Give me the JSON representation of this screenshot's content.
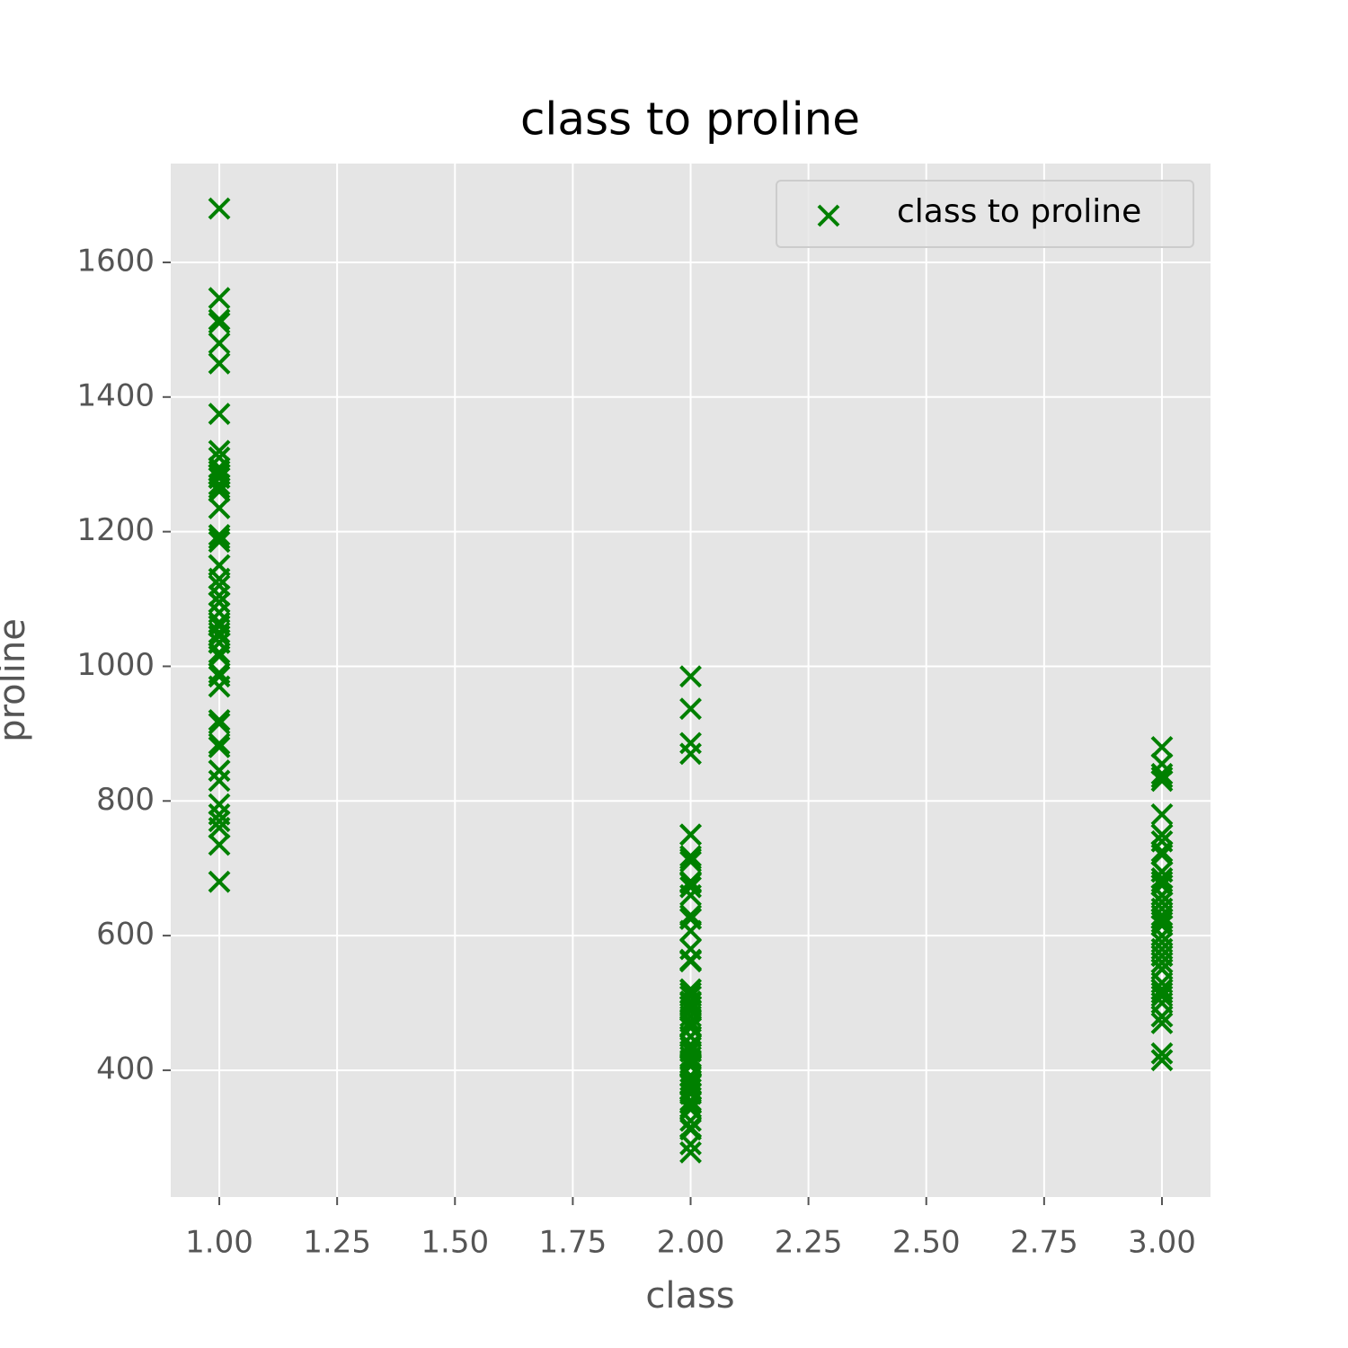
{
  "chart_data": {
    "type": "scatter",
    "title": "class to proline",
    "xlabel": "class",
    "ylabel": "proline",
    "xlim": [
      0.897,
      3.103
    ],
    "ylim": [
      211.7,
      1746.8
    ],
    "xticks": [
      {
        "value": 1,
        "label": "1.00"
      },
      {
        "value": 1.25,
        "label": "1.25"
      },
      {
        "value": 1.5,
        "label": "1.50"
      },
      {
        "value": 1.75,
        "label": "1.75"
      },
      {
        "value": 2,
        "label": "2.00"
      },
      {
        "value": 2.25,
        "label": "2.25"
      },
      {
        "value": 2.5,
        "label": "2.50"
      },
      {
        "value": 2.75,
        "label": "2.75"
      },
      {
        "value": 3,
        "label": "3.00"
      }
    ],
    "yticks": [
      400,
      600,
      800,
      1000,
      1200,
      1400,
      1600
    ],
    "grid": true,
    "legend": "upper right",
    "series": [
      {
        "name": "class to proline",
        "color": "#008000",
        "marker": "x",
        "x": [
          1,
          1,
          1,
          1,
          1,
          1,
          1,
          1,
          1,
          1,
          1,
          1,
          1,
          1,
          1,
          1,
          1,
          1,
          1,
          1,
          1,
          1,
          1,
          1,
          1,
          1,
          1,
          1,
          1,
          1,
          1,
          1,
          1,
          1,
          1,
          1,
          1,
          1,
          1,
          1,
          1,
          1,
          1,
          1,
          1,
          1,
          1,
          1,
          1,
          1,
          1,
          1,
          1,
          1,
          1,
          1,
          1,
          1,
          1,
          2,
          2,
          2,
          2,
          2,
          2,
          2,
          2,
          2,
          2,
          2,
          2,
          2,
          2,
          2,
          2,
          2,
          2,
          2,
          2,
          2,
          2,
          2,
          2,
          2,
          2,
          2,
          2,
          2,
          2,
          2,
          2,
          2,
          2,
          2,
          2,
          2,
          2,
          2,
          2,
          2,
          2,
          2,
          2,
          2,
          2,
          2,
          2,
          2,
          2,
          2,
          2,
          2,
          2,
          2,
          2,
          2,
          2,
          2,
          2,
          2,
          2,
          2,
          2,
          2,
          2,
          2,
          2,
          2,
          2,
          2,
          3,
          3,
          3,
          3,
          3,
          3,
          3,
          3,
          3,
          3,
          3,
          3,
          3,
          3,
          3,
          3,
          3,
          3,
          3,
          3,
          3,
          3,
          3,
          3,
          3,
          3,
          3,
          3,
          3,
          3,
          3,
          3,
          3,
          3,
          3,
          3,
          3,
          3,
          3,
          3,
          3,
          3,
          3,
          3,
          3,
          3,
          3,
          3
        ],
        "values": [
          1065,
          1050,
          1185,
          1480,
          735,
          1450,
          1290,
          1295,
          1045,
          1045,
          1510,
          1280,
          1320,
          1150,
          1547,
          1310,
          1280,
          1130,
          1680,
          845,
          780,
          770,
          1035,
          1015,
          845,
          830,
          1195,
          1285,
          915,
          1035,
          1285,
          1515,
          990,
          1235,
          1095,
          920,
          880,
          1105,
          1020,
          760,
          795,
          1035,
          1095,
          680,
          885,
          1080,
          1065,
          985,
          1060,
          1260,
          1150,
          1265,
          1190,
          1375,
          1060,
          1120,
          970,
          1270,
          1285,
          520,
          680,
          450,
          630,
          420,
          355,
          678,
          502,
          510,
          750,
          718,
          870,
          410,
          472,
          985,
          886,
          428,
          392,
          500,
          750,
          463,
          278,
          714,
          630,
          515,
          520,
          450,
          495,
          562,
          680,
          625,
          480,
          450,
          495,
          290,
          345,
          937,
          625,
          428,
          660,
          406,
          710,
          562,
          438,
          415,
          672,
          315,
          510,
          488,
          312,
          680,
          562,
          325,
          607,
          434,
          385,
          407,
          495,
          345,
          372,
          564,
          625,
          465,
          365,
          380,
          380,
          378,
          352,
          466,
          342,
          580,
          630,
          530,
          560,
          600,
          650,
          695,
          720,
          515,
          580,
          590,
          600,
          780,
          520,
          550,
          855,
          830,
          415,
          625,
          650,
          550,
          500,
          480,
          425,
          675,
          640,
          725,
          480,
          880,
          660,
          620,
          520,
          680,
          570,
          675,
          615,
          520,
          695,
          685,
          750,
          510,
          470,
          660,
          740,
          750,
          835,
          840,
          560,
          570
        ]
      }
    ]
  }
}
